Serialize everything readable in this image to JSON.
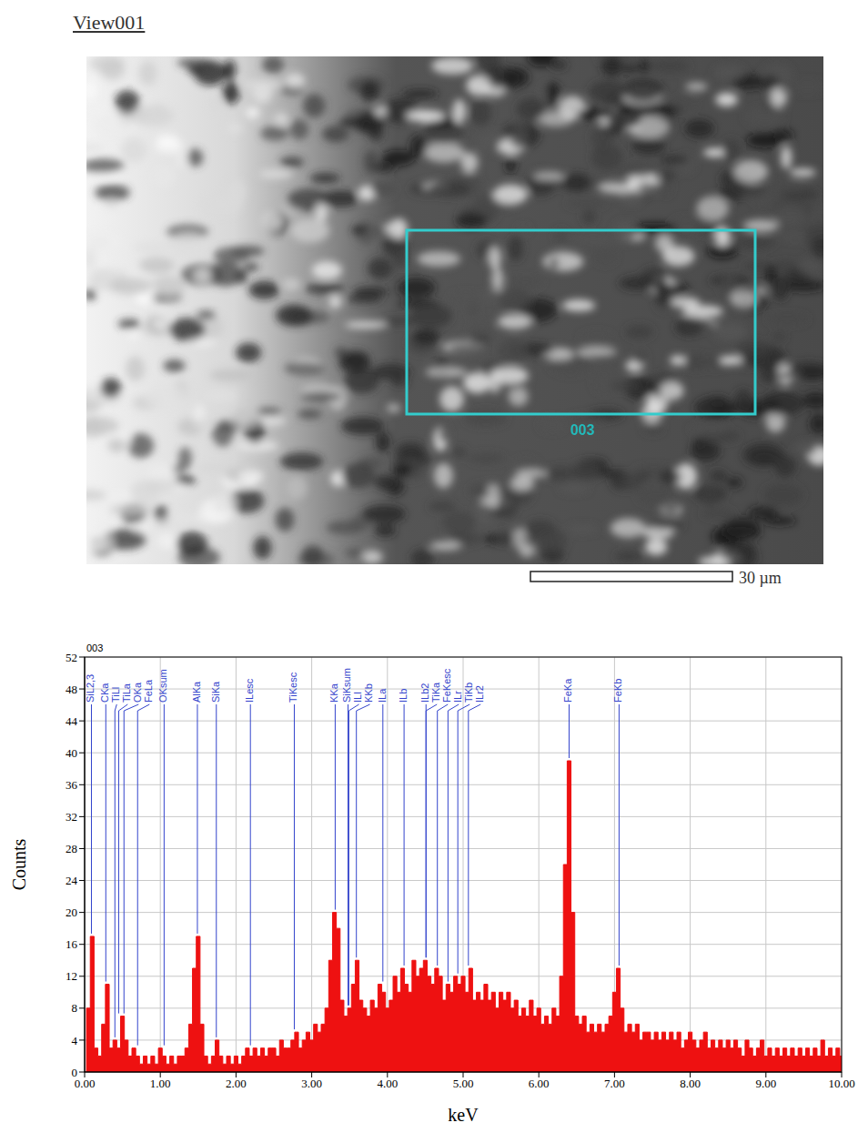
{
  "header": "View001",
  "image": {
    "region_label": "003",
    "scale_bar": "30 µm"
  },
  "chart_data": {
    "type": "area",
    "title": "003",
    "x_label": "keV",
    "y_label": "Counts",
    "color": "#ee1111",
    "grid": true,
    "xlim": [
      0,
      10
    ],
    "ylim": [
      0,
      52
    ],
    "xticks": [
      {
        "value": 0,
        "label": "0.00"
      },
      {
        "value": 1,
        "label": "1.00"
      },
      {
        "value": 2,
        "label": "2.00"
      },
      {
        "value": 3,
        "label": "3.00"
      },
      {
        "value": 4,
        "label": "4.00"
      },
      {
        "value": 5,
        "label": "5.00"
      },
      {
        "value": 6,
        "label": "6.00"
      },
      {
        "value": 7,
        "label": "7.00"
      },
      {
        "value": 8,
        "label": "8.00"
      },
      {
        "value": 9,
        "label": "9.00"
      },
      {
        "value": 10,
        "label": "10.00"
      }
    ],
    "yticks": [
      0,
      4,
      8,
      12,
      16,
      20,
      24,
      28,
      32,
      36,
      40,
      44,
      48,
      52
    ],
    "x": [
      0,
      0.05,
      0.1,
      0.15,
      0.2,
      0.25,
      0.3,
      0.35,
      0.4,
      0.45,
      0.5,
      0.55,
      0.6,
      0.65,
      0.7,
      0.75,
      0.8,
      0.85,
      0.9,
      0.95,
      1,
      1.05,
      1.1,
      1.15,
      1.2,
      1.25,
      1.3,
      1.35,
      1.4,
      1.45,
      1.5,
      1.55,
      1.6,
      1.65,
      1.7,
      1.75,
      1.8,
      1.85,
      1.9,
      1.95,
      2,
      2.05,
      2.1,
      2.15,
      2.2,
      2.25,
      2.3,
      2.35,
      2.4,
      2.45,
      2.5,
      2.55,
      2.6,
      2.65,
      2.7,
      2.75,
      2.8,
      2.85,
      2.9,
      2.95,
      3,
      3.05,
      3.1,
      3.15,
      3.2,
      3.25,
      3.3,
      3.35,
      3.4,
      3.45,
      3.5,
      3.55,
      3.6,
      3.65,
      3.7,
      3.75,
      3.8,
      3.85,
      3.9,
      3.95,
      4,
      4.05,
      4.1,
      4.15,
      4.2,
      4.25,
      4.3,
      4.35,
      4.4,
      4.45,
      4.5,
      4.55,
      4.6,
      4.65,
      4.7,
      4.75,
      4.8,
      4.85,
      4.9,
      4.95,
      5,
      5.05,
      5.1,
      5.15,
      5.2,
      5.25,
      5.3,
      5.35,
      5.4,
      5.45,
      5.5,
      5.55,
      5.6,
      5.65,
      5.7,
      5.75,
      5.8,
      5.85,
      5.9,
      5.95,
      6,
      6.05,
      6.1,
      6.15,
      6.2,
      6.25,
      6.3,
      6.35,
      6.4,
      6.45,
      6.5,
      6.55,
      6.6,
      6.65,
      6.7,
      6.75,
      6.8,
      6.85,
      6.9,
      6.95,
      7,
      7.05,
      7.1,
      7.15,
      7.2,
      7.25,
      7.3,
      7.35,
      7.4,
      7.45,
      7.5,
      7.55,
      7.6,
      7.65,
      7.7,
      7.75,
      7.8,
      7.85,
      7.9,
      7.95,
      8,
      8.05,
      8.1,
      8.15,
      8.2,
      8.25,
      8.3,
      8.35,
      8.4,
      8.45,
      8.5,
      8.55,
      8.6,
      8.65,
      8.7,
      8.75,
      8.8,
      8.85,
      8.9,
      8.95,
      9,
      9.05,
      9.1,
      9.15,
      9.2,
      9.25,
      9.3,
      9.35,
      9.4,
      9.45,
      9.5,
      9.55,
      9.6,
      9.65,
      9.7,
      9.75,
      9.8,
      9.85,
      9.9,
      9.95,
      10
    ],
    "values": [
      0,
      8,
      17,
      3,
      2,
      6,
      11,
      3,
      4,
      3,
      7,
      4,
      2,
      3,
      2,
      1,
      2,
      1,
      2,
      1,
      3,
      2,
      1,
      2,
      1,
      2,
      2,
      3,
      6,
      13,
      17,
      6,
      2,
      1,
      2,
      4,
      2,
      1,
      2,
      1,
      2,
      1,
      2,
      3,
      2,
      3,
      2,
      3,
      2,
      3,
      3,
      2,
      4,
      3,
      3,
      4,
      5,
      3,
      4,
      5,
      4,
      6,
      5,
      6,
      8,
      14,
      20,
      18,
      9,
      7,
      8,
      11,
      14,
      9,
      8,
      7,
      9,
      8,
      11,
      10,
      8,
      9,
      12,
      10,
      13,
      11,
      10,
      14,
      12,
      13,
      14,
      12,
      11,
      13,
      12,
      9,
      11,
      10,
      12,
      11,
      12,
      10,
      13,
      9,
      10,
      9,
      11,
      9,
      10,
      8,
      10,
      9,
      10,
      8,
      9,
      7,
      8,
      7,
      9,
      7,
      8,
      6,
      7,
      6,
      8,
      7,
      12,
      26,
      39,
      20,
      7,
      6,
      7,
      5,
      6,
      5,
      6,
      5,
      6,
      7,
      10,
      13,
      8,
      5,
      6,
      5,
      6,
      4,
      5,
      5,
      4,
      5,
      4,
      5,
      4,
      5,
      4,
      5,
      3,
      4,
      5,
      4,
      3,
      4,
      5,
      3,
      4,
      3,
      4,
      3,
      4,
      3,
      4,
      3,
      2,
      4,
      3,
      2,
      3,
      4,
      2,
      3,
      2,
      3,
      2,
      3,
      2,
      3,
      2,
      3,
      2,
      3,
      2,
      3,
      2,
      4,
      2,
      3,
      2,
      3,
      2
    ],
    "annotations": [
      {
        "text": "SiL2,3",
        "x": 0.09
      },
      {
        "text": "CKa",
        "x": 0.28
      },
      {
        "text": "TiLl",
        "x": 0.4
      },
      {
        "text": "TiLa",
        "x": 0.45
      },
      {
        "text": "OKa",
        "x": 0.52
      },
      {
        "text": "FeLa",
        "x": 0.7
      },
      {
        "text": "OKsum",
        "x": 1.05
      },
      {
        "text": "AlKa",
        "x": 1.49
      },
      {
        "text": "SiKa",
        "x": 1.74
      },
      {
        "text": "ILesc",
        "x": 2.19
      },
      {
        "text": "TiKesc",
        "x": 2.77
      },
      {
        "text": "KKa",
        "x": 3.31
      },
      {
        "text": "SiKsum",
        "x": 3.48
      },
      {
        "text": "ILl",
        "x": 3.49
      },
      {
        "text": "KKb",
        "x": 3.59
      },
      {
        "text": "ILa",
        "x": 3.94
      },
      {
        "text": "ILb",
        "x": 4.22
      },
      {
        "text": "ILb2",
        "x": 4.51
      },
      {
        "text": "TiKa",
        "x": 4.51
      },
      {
        "text": "FeKesc",
        "x": 4.66
      },
      {
        "text": "ILr",
        "x": 4.8
      },
      {
        "text": "TiKb",
        "x": 4.93
      },
      {
        "text": "ILr2",
        "x": 5.07
      },
      {
        "text": "FeKa",
        "x": 6.4
      },
      {
        "text": "FeKb",
        "x": 7.06
      }
    ]
  }
}
